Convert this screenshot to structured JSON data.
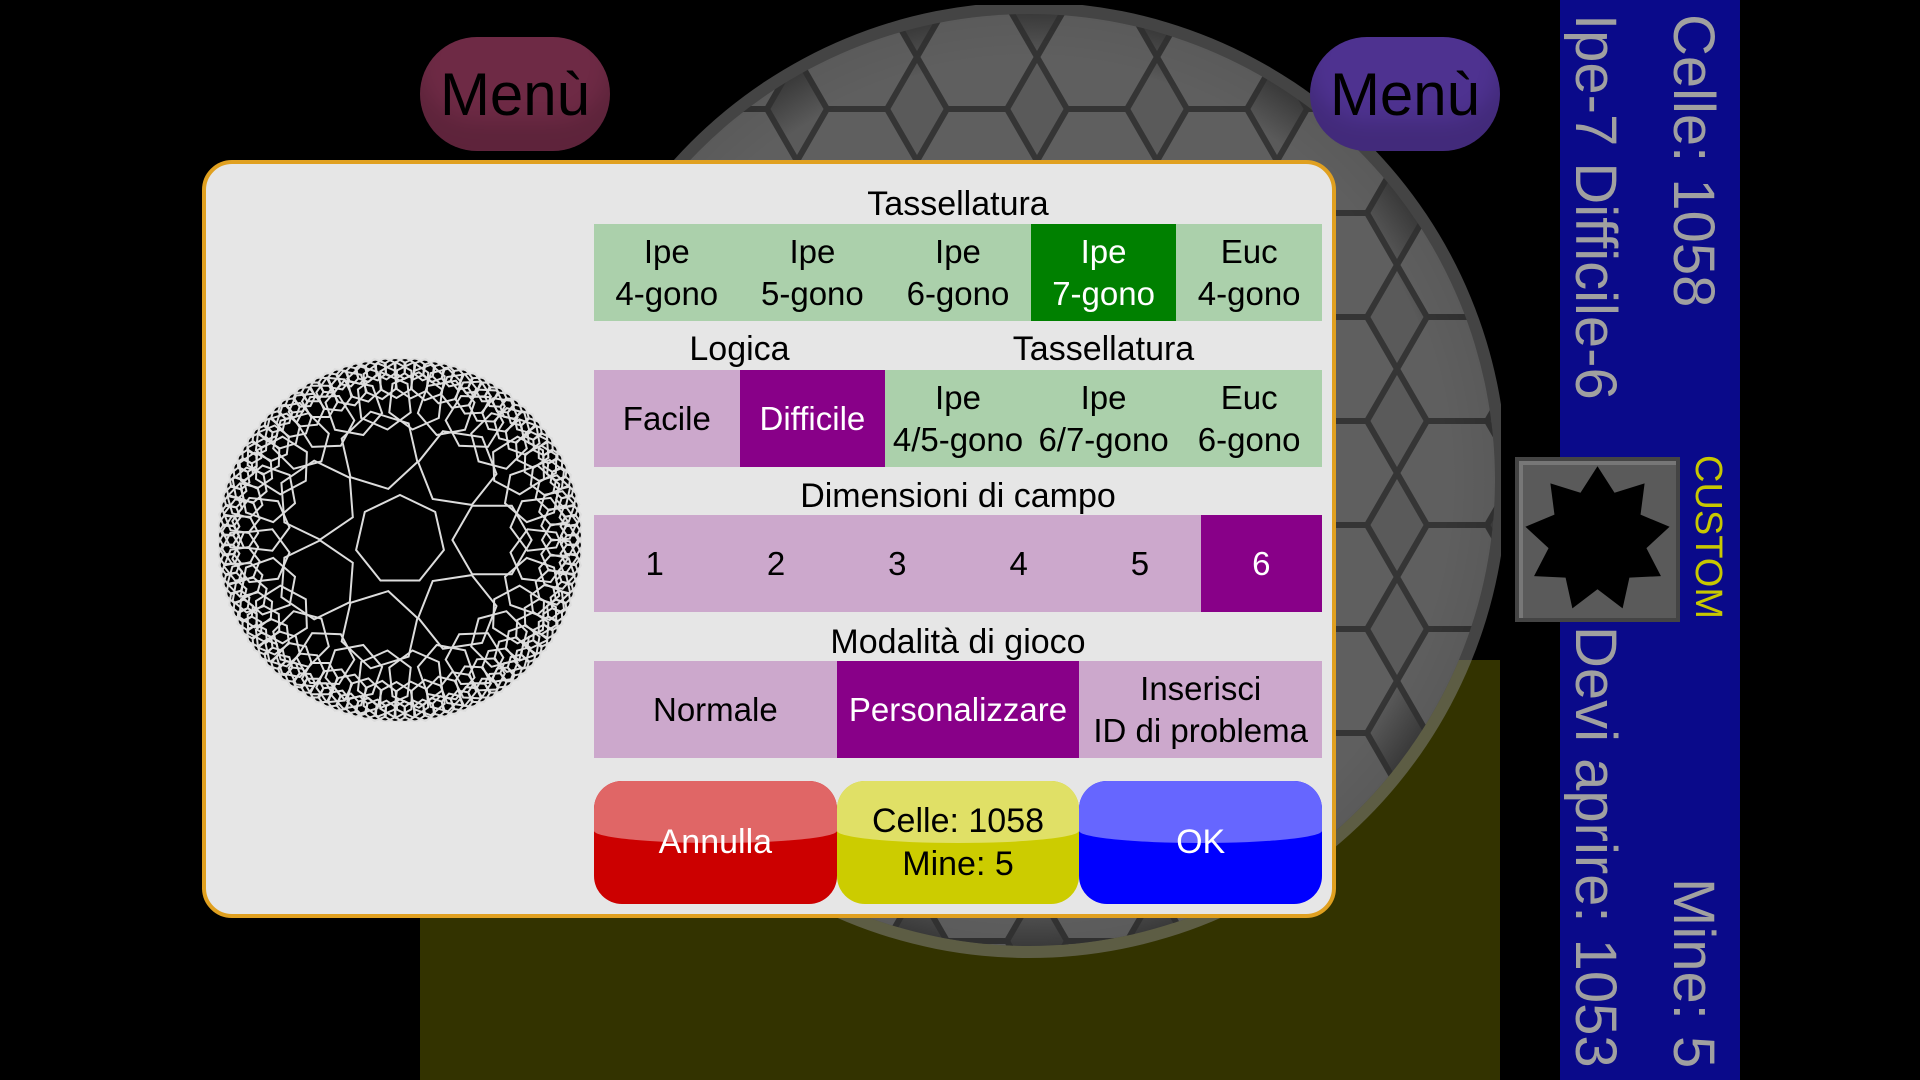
{
  "menu_left": "Menù",
  "menu_right": "Menù",
  "side": {
    "cells": "Celle: 1058",
    "mode": "Ipe-7 Difficile-6",
    "mines": "Mine: 5",
    "to_open": "Devi aprire: 1053",
    "custom": "CUSTOM"
  },
  "dialog": {
    "tiling_title": "Tassellatura",
    "tiling": [
      "Ipe\n4-gono",
      "Ipe\n5-gono",
      "Ipe\n6-gono",
      "Ipe\n7-gono",
      "Euc\n4-gono"
    ],
    "tiling_selected": 3,
    "logic_title": "Logica",
    "tiling2_title": "Tassellatura",
    "logic": [
      "Facile",
      "Difficile"
    ],
    "logic_selected": 1,
    "tiling2": [
      "Ipe\n4/5-gono",
      "Ipe\n6/7-gono",
      "Euc\n6-gono"
    ],
    "size_title": "Dimensioni di campo",
    "sizes": [
      "1",
      "2",
      "3",
      "4",
      "5",
      "6"
    ],
    "size_selected": 5,
    "mode_title": "Modalità di gioco",
    "modes": [
      "Normale",
      "Personalizzare",
      "Inserisci\nID di problema"
    ],
    "mode_selected": 1,
    "cancel": "Annulla",
    "info": "Celle: 1058\nMine: 5",
    "ok": "OK"
  },
  "colors": {
    "selected_green": "#008000",
    "selected_purple": "#880088",
    "panel_blue": "#0a0a8a",
    "border": "#e0a020"
  }
}
